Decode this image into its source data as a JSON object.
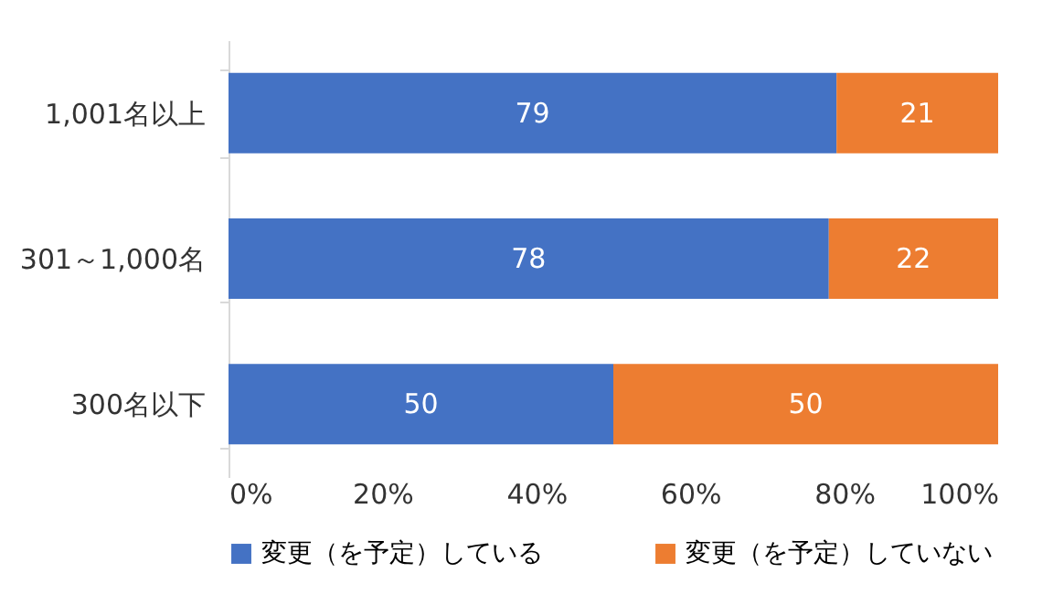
{
  "chart_data": {
    "type": "bar",
    "orientation": "horizontal",
    "stacked": true,
    "categories": [
      "1,001名以上",
      "301～1,000名",
      "300名以下"
    ],
    "series": [
      {
        "name": "変更（を予定）している",
        "color": "#4472c4",
        "values": [
          79,
          78,
          50
        ]
      },
      {
        "name": "変更（を予定）していない",
        "color": "#ed7d31",
        "values": [
          21,
          22,
          50
        ]
      }
    ],
    "xlim": [
      0,
      100
    ],
    "xticks": [
      {
        "value": 0,
        "label": "0%"
      },
      {
        "value": 20,
        "label": "20%"
      },
      {
        "value": 40,
        "label": "40%"
      },
      {
        "value": 60,
        "label": "60%"
      },
      {
        "value": 80,
        "label": "80%"
      },
      {
        "value": 100,
        "label": "100%"
      }
    ],
    "data_labels": true,
    "grid": false,
    "legend": "bottom"
  }
}
